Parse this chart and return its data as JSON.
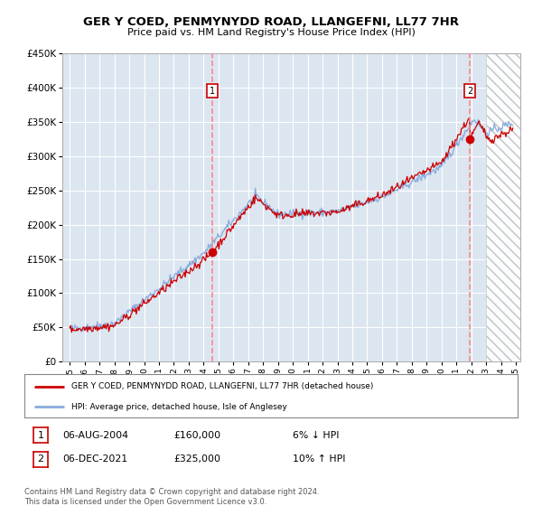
{
  "title": "GER Y COED, PENMYNYDD ROAD, LLANGEFNI, LL77 7HR",
  "subtitle": "Price paid vs. HM Land Registry's House Price Index (HPI)",
  "legend_label_red": "GER Y COED, PENMYNYDD ROAD, LLANGEFNI, LL77 7HR (detached house)",
  "legend_label_blue": "HPI: Average price, detached house, Isle of Anglesey",
  "annotation_1_date": "06-AUG-2004",
  "annotation_1_price": "£160,000",
  "annotation_1_hpi": "6% ↓ HPI",
  "annotation_2_date": "06-DEC-2021",
  "annotation_2_price": "£325,000",
  "annotation_2_hpi": "10% ↑ HPI",
  "footer": "Contains HM Land Registry data © Crown copyright and database right 2024.\nThis data is licensed under the Open Government Licence v3.0.",
  "sale1_year": 2004.58,
  "sale1_price": 160000,
  "sale2_year": 2021.92,
  "sale2_price": 325000,
  "ylim": [
    0,
    450000
  ],
  "xlim_start": 1994.5,
  "xlim_end": 2025.3,
  "background_color": "#dce6f1",
  "red_line_color": "#cc0000",
  "blue_line_color": "#88aadd",
  "vline_color": "#ff8888",
  "marker_box_color": "#cc0000",
  "hatch_start": 2023.0,
  "hatch_facecolor": "white",
  "hatch_edgecolor": "#aaaaaa"
}
